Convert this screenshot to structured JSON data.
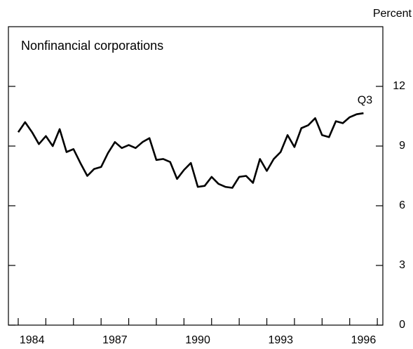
{
  "chart_data": {
    "type": "line",
    "title": "Nonfinancial corporations",
    "y_axis_label": "Percent",
    "annotation": "Q3",
    "x": [
      1984.0,
      1984.25,
      1984.5,
      1984.75,
      1985.0,
      1985.25,
      1985.5,
      1985.75,
      1986.0,
      1986.25,
      1986.5,
      1986.75,
      1987.0,
      1987.25,
      1987.5,
      1987.75,
      1988.0,
      1988.25,
      1988.5,
      1988.75,
      1989.0,
      1989.25,
      1989.5,
      1989.75,
      1990.0,
      1990.25,
      1990.5,
      1990.75,
      1991.0,
      1991.25,
      1991.5,
      1991.75,
      1992.0,
      1992.25,
      1992.5,
      1992.75,
      1993.0,
      1993.25,
      1993.5,
      1993.75,
      1994.0,
      1994.25,
      1994.5,
      1994.75,
      1995.0,
      1995.25,
      1995.5,
      1995.75,
      1996.0,
      1996.25,
      1996.5
    ],
    "series": [
      {
        "color": "#000000",
        "values": [
          9.7,
          10.2,
          9.7,
          9.1,
          9.5,
          9.0,
          9.85,
          8.7,
          8.85,
          8.15,
          7.5,
          7.85,
          7.95,
          8.65,
          9.2,
          8.9,
          9.05,
          8.9,
          9.2,
          9.4,
          8.3,
          8.35,
          8.2,
          7.35,
          7.8,
          8.15,
          6.95,
          7.0,
          7.45,
          7.1,
          6.95,
          6.9,
          7.45,
          7.5,
          7.15,
          8.35,
          7.75,
          8.35,
          8.7,
          9.55,
          8.95,
          9.9,
          10.05,
          10.4,
          9.55,
          9.45,
          10.25,
          10.15,
          10.45,
          10.6,
          10.65
        ]
      }
    ],
    "xlim": [
      1983.645,
      1997.2
    ],
    "xticks": [
      {
        "value": 1984.5,
        "label": "1984"
      },
      {
        "value": 1987.5,
        "label": "1987"
      },
      {
        "value": 1990.5,
        "label": "1990"
      },
      {
        "value": 1993.5,
        "label": "1993"
      },
      {
        "value": 1996.5,
        "label": "1996"
      }
    ],
    "xminorticks": [
      1984,
      1985,
      1986,
      1987,
      1988,
      1989,
      1990,
      1991,
      1992,
      1993,
      1994,
      1995,
      1996,
      1997
    ],
    "ylim": [
      0,
      15
    ],
    "yticks": [
      0,
      3,
      6,
      9,
      12
    ]
  }
}
